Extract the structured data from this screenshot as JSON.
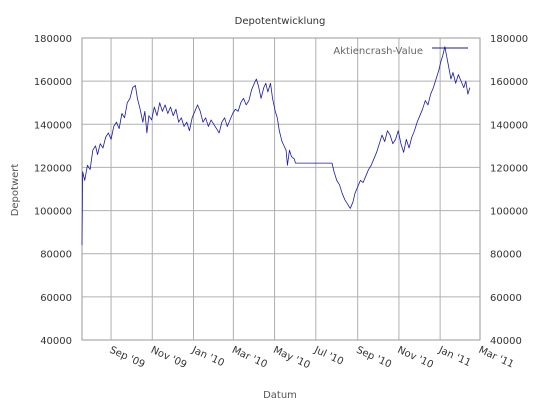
{
  "chart_data": {
    "type": "line",
    "title": "Depotentwicklung",
    "xlabel": "Datum",
    "ylabel": "Depotwert",
    "ylim": [
      40000,
      180000
    ],
    "y_ticks": [
      40000,
      60000,
      80000,
      100000,
      120000,
      140000,
      160000,
      180000
    ],
    "y_tick_labels": [
      "40000",
      "60000",
      "80000",
      "100000",
      "120000",
      "140000",
      "160000",
      "180000"
    ],
    "secondary_y_axis": true,
    "x_range": [
      "2009-07-20",
      "2011-03-01"
    ],
    "x_ticks": [
      "2009-09-01",
      "2009-11-01",
      "2010-01-01",
      "2010-03-01",
      "2010-05-01",
      "2010-07-01",
      "2010-09-01",
      "2010-11-01",
      "2011-01-01",
      "2011-03-01"
    ],
    "x_tick_labels": [
      "Sep '09",
      "Nov '09",
      "Jan '10",
      "Mar '10",
      "May '10",
      "Jul '10",
      "Sep '10",
      "Nov '10",
      "Jan '11",
      "Mar '11"
    ],
    "grid": true,
    "legend_position": "top-right",
    "series": [
      {
        "name": "Aktiencrash-Value",
        "color": "#1a1aa6",
        "points": [
          [
            "2009-07-20",
            84000
          ],
          [
            "2009-07-21",
            118000
          ],
          [
            "2009-07-24",
            114000
          ],
          [
            "2009-07-28",
            121000
          ],
          [
            "2009-08-01",
            119000
          ],
          [
            "2009-08-05",
            128000
          ],
          [
            "2009-08-09",
            130000
          ],
          [
            "2009-08-12",
            126000
          ],
          [
            "2009-08-16",
            131000
          ],
          [
            "2009-08-20",
            129000
          ],
          [
            "2009-08-24",
            134000
          ],
          [
            "2009-08-28",
            136000
          ],
          [
            "2009-09-01",
            133000
          ],
          [
            "2009-09-05",
            139000
          ],
          [
            "2009-09-09",
            141000
          ],
          [
            "2009-09-13",
            138000
          ],
          [
            "2009-09-17",
            145000
          ],
          [
            "2009-09-21",
            143000
          ],
          [
            "2009-09-25",
            150000
          ],
          [
            "2009-09-29",
            152000
          ],
          [
            "2009-10-03",
            157000
          ],
          [
            "2009-10-07",
            158000
          ],
          [
            "2009-10-10",
            152000
          ],
          [
            "2009-10-14",
            147000
          ],
          [
            "2009-10-18",
            141000
          ],
          [
            "2009-10-21",
            146000
          ],
          [
            "2009-10-24",
            136000
          ],
          [
            "2009-10-27",
            144000
          ],
          [
            "2009-10-31",
            142000
          ],
          [
            "2009-11-04",
            148000
          ],
          [
            "2009-11-08",
            144000
          ],
          [
            "2009-11-12",
            150000
          ],
          [
            "2009-11-16",
            146000
          ],
          [
            "2009-11-20",
            149000
          ],
          [
            "2009-11-24",
            145000
          ],
          [
            "2009-11-28",
            148000
          ],
          [
            "2009-12-02",
            144000
          ],
          [
            "2009-12-06",
            147000
          ],
          [
            "2009-12-10",
            141000
          ],
          [
            "2009-12-14",
            143000
          ],
          [
            "2009-12-18",
            139000
          ],
          [
            "2009-12-22",
            141000
          ],
          [
            "2009-12-26",
            137000
          ],
          [
            "2009-12-30",
            143000
          ],
          [
            "2010-01-03",
            146000
          ],
          [
            "2010-01-07",
            149000
          ],
          [
            "2010-01-11",
            146000
          ],
          [
            "2010-01-15",
            141000
          ],
          [
            "2010-01-19",
            143000
          ],
          [
            "2010-01-23",
            139000
          ],
          [
            "2010-01-27",
            142000
          ],
          [
            "2010-01-31",
            140000
          ],
          [
            "2010-02-04",
            138000
          ],
          [
            "2010-02-08",
            136000
          ],
          [
            "2010-02-12",
            141000
          ],
          [
            "2010-02-16",
            143000
          ],
          [
            "2010-02-20",
            139000
          ],
          [
            "2010-02-24",
            142000
          ],
          [
            "2010-02-28",
            145000
          ],
          [
            "2010-03-04",
            147000
          ],
          [
            "2010-03-08",
            146000
          ],
          [
            "2010-03-12",
            150000
          ],
          [
            "2010-03-16",
            152000
          ],
          [
            "2010-03-20",
            149000
          ],
          [
            "2010-03-24",
            151000
          ],
          [
            "2010-03-28",
            156000
          ],
          [
            "2010-04-01",
            159000
          ],
          [
            "2010-04-04",
            161000
          ],
          [
            "2010-04-07",
            158000
          ],
          [
            "2010-04-11",
            152000
          ],
          [
            "2010-04-15",
            157000
          ],
          [
            "2010-04-18",
            159000
          ],
          [
            "2010-04-21",
            155000
          ],
          [
            "2010-04-25",
            159000
          ],
          [
            "2010-04-28",
            152000
          ],
          [
            "2010-05-02",
            146000
          ],
          [
            "2010-05-05",
            143000
          ],
          [
            "2010-05-08",
            137000
          ],
          [
            "2010-05-12",
            132000
          ],
          [
            "2010-05-15",
            130000
          ],
          [
            "2010-05-18",
            128000
          ],
          [
            "2010-05-20",
            121000
          ],
          [
            "2010-05-23",
            128000
          ],
          [
            "2010-05-26",
            125000
          ],
          [
            "2010-05-30",
            124000
          ],
          [
            "2010-06-01",
            122000
          ],
          [
            "2010-06-10",
            122000
          ],
          [
            "2010-06-20",
            122000
          ],
          [
            "2010-06-30",
            122000
          ],
          [
            "2010-07-10",
            122000
          ],
          [
            "2010-07-20",
            122000
          ],
          [
            "2010-07-25",
            122000
          ],
          [
            "2010-07-28",
            118000
          ],
          [
            "2010-08-01",
            114000
          ],
          [
            "2010-08-05",
            112000
          ],
          [
            "2010-08-09",
            108000
          ],
          [
            "2010-08-13",
            105000
          ],
          [
            "2010-08-17",
            103000
          ],
          [
            "2010-08-21",
            101000
          ],
          [
            "2010-08-25",
            104000
          ],
          [
            "2010-08-28",
            108000
          ],
          [
            "2010-09-01",
            111000
          ],
          [
            "2010-09-05",
            114000
          ],
          [
            "2010-09-09",
            113000
          ],
          [
            "2010-09-13",
            116000
          ],
          [
            "2010-09-17",
            119000
          ],
          [
            "2010-09-21",
            121000
          ],
          [
            "2010-09-25",
            124000
          ],
          [
            "2010-09-29",
            127000
          ],
          [
            "2010-10-03",
            131000
          ],
          [
            "2010-10-07",
            135000
          ],
          [
            "2010-10-11",
            132000
          ],
          [
            "2010-10-15",
            137000
          ],
          [
            "2010-10-19",
            135000
          ],
          [
            "2010-10-23",
            131000
          ],
          [
            "2010-10-27",
            133000
          ],
          [
            "2010-10-31",
            137000
          ],
          [
            "2010-11-04",
            131000
          ],
          [
            "2010-11-08",
            127000
          ],
          [
            "2010-11-12",
            133000
          ],
          [
            "2010-11-16",
            129000
          ],
          [
            "2010-11-20",
            134000
          ],
          [
            "2010-11-24",
            137000
          ],
          [
            "2010-11-28",
            141000
          ],
          [
            "2010-12-02",
            144000
          ],
          [
            "2010-12-06",
            147000
          ],
          [
            "2010-12-10",
            151000
          ],
          [
            "2010-12-14",
            149000
          ],
          [
            "2010-12-18",
            154000
          ],
          [
            "2010-12-22",
            157000
          ],
          [
            "2010-12-26",
            161000
          ],
          [
            "2010-12-30",
            165000
          ],
          [
            "2011-01-02",
            169000
          ],
          [
            "2011-01-05",
            172000
          ],
          [
            "2011-01-08",
            176000
          ],
          [
            "2011-01-11",
            171000
          ],
          [
            "2011-01-14",
            166000
          ],
          [
            "2011-01-17",
            161000
          ],
          [
            "2011-01-20",
            164000
          ],
          [
            "2011-01-24",
            159000
          ],
          [
            "2011-01-28",
            163000
          ],
          [
            "2011-02-01",
            160000
          ],
          [
            "2011-02-05",
            157000
          ],
          [
            "2011-02-08",
            160000
          ],
          [
            "2011-02-11",
            154000
          ],
          [
            "2011-02-14",
            157000
          ]
        ]
      }
    ]
  }
}
